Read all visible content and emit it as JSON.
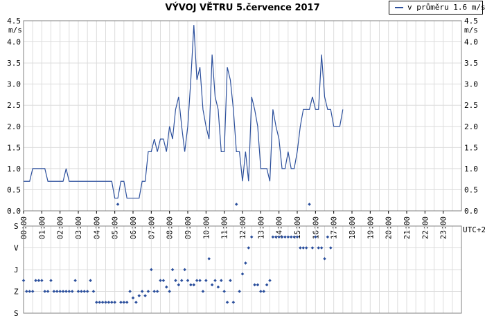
{
  "chart_data": [
    {
      "type": "line",
      "title": "VÝVOJ VĚTRU  5.července 2017",
      "ylabel": "m/s",
      "xlabel": "UTC+2",
      "legend": "v průměru 1.6 m/s",
      "legend_position": "top-right",
      "ylim": [
        0,
        4.5
      ],
      "yticks": [
        "0.0",
        "0.5",
        "1.0",
        "1.5",
        "2.0",
        "2.5",
        "3.0",
        "3.5",
        "4.0",
        "4.5"
      ],
      "xticks": [
        "00:00",
        "01:00",
        "02:00",
        "03:00",
        "04:00",
        "05:00",
        "06:00",
        "07:00",
        "08:00",
        "09:00",
        "10:00",
        "11:00",
        "12:00",
        "13:00",
        "14:00",
        "15:00",
        "16:00",
        "17:00",
        "18:00",
        "19:00",
        "20:00",
        "21:00",
        "22:00",
        "23:00"
      ],
      "grid": true,
      "series_color": "#2b4f9c",
      "series": [
        {
          "step_minutes": 10,
          "values": [
            0.7,
            0.7,
            0.7,
            1.0,
            1.0,
            1.0,
            1.0,
            1.0,
            0.7,
            0.7,
            0.7,
            0.7,
            0.7,
            0.7,
            1.0,
            0.7,
            0.7,
            0.7,
            0.7,
            0.7,
            0.7,
            0.7,
            0.7,
            0.7,
            0.7,
            0.7,
            0.7,
            0.7,
            0.7,
            0.7,
            0.3,
            0.3,
            0.7,
            0.7,
            0.3,
            0.3,
            0.3,
            0.3,
            0.3,
            0.7,
            0.7,
            1.4,
            1.4,
            1.7,
            1.4,
            1.7,
            1.7,
            1.4,
            2.0,
            1.7,
            2.4,
            2.7,
            2.0,
            1.4,
            2.0,
            3.1,
            4.4,
            3.1,
            3.4,
            2.4,
            2.0,
            1.7,
            3.7,
            2.7,
            2.4,
            1.4,
            1.4,
            3.4,
            3.1,
            2.4,
            1.4,
            1.4,
            0.7,
            1.4,
            0.7,
            2.7,
            2.4,
            2.0,
            1.0,
            1.0,
            1.0,
            0.7,
            2.4,
            2.0,
            1.7,
            1.0,
            1.0,
            1.4,
            1.0,
            1.0,
            1.4,
            2.0,
            2.4,
            2.4,
            2.4,
            2.7,
            2.4,
            2.4,
            3.7,
            2.7,
            2.4,
            2.4,
            2.0,
            2.0,
            2.0,
            2.4
          ]
        }
      ]
    },
    {
      "type": "scatter",
      "yticks": [
        "S",
        "V",
        "J",
        "Z",
        "S"
      ],
      "grid": true,
      "series_color": "#2b4f9c",
      "series": [
        {
          "step_minutes": 10,
          "values": [
            0.5,
            0.0,
            0.0,
            0.0,
            0.5,
            0.5,
            0.5,
            0.0,
            0.0,
            0.5,
            0.0,
            0.0,
            0.0,
            0.0,
            0.0,
            0.0,
            0.0,
            0.5,
            0.0,
            0.0,
            0.0,
            0.0,
            0.5,
            0.0,
            -0.5,
            -0.5,
            -0.5,
            -0.5,
            -0.5,
            -0.5,
            -0.5,
            4.0,
            -0.5,
            -0.5,
            -0.5,
            0.0,
            -0.3,
            -0.5,
            -0.2,
            0.0,
            -0.2,
            0.0,
            1.0,
            0.0,
            0.0,
            0.5,
            0.5,
            0.2,
            0.0,
            1.0,
            0.5,
            0.3,
            0.5,
            1.0,
            0.5,
            0.3,
            0.3,
            0.5,
            0.5,
            0.0,
            0.5,
            1.5,
            0.3,
            0.5,
            0.2,
            0.5,
            0.0,
            -0.5,
            0.5,
            -0.5,
            4.0,
            0.0,
            0.8,
            1.3,
            2.0,
            2.5,
            0.3,
            0.3,
            0.0,
            0.0,
            0.3,
            0.5,
            2.5,
            2.5,
            2.5,
            2.5,
            2.5,
            2.5,
            2.5,
            2.5,
            2.5,
            2.0,
            2.0,
            2.0,
            4.0,
            2.0,
            2.5,
            2.0,
            2.0,
            1.5,
            2.5,
            2.0
          ]
        }
      ]
    }
  ]
}
